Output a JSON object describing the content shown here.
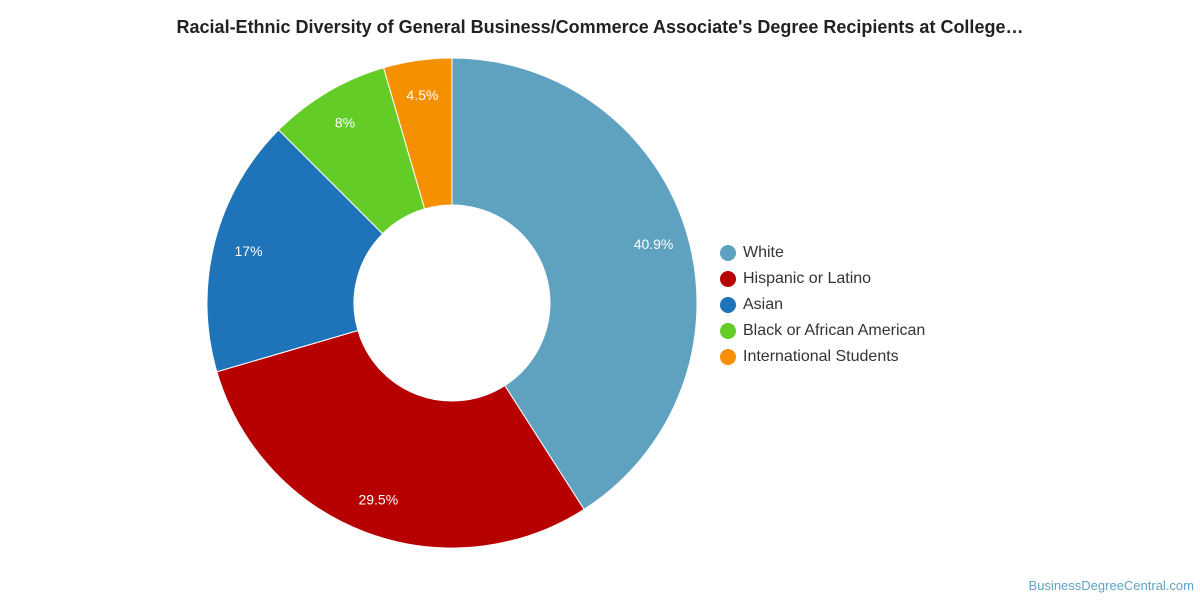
{
  "chart_data": {
    "type": "pie",
    "title": "Racial-Ethnic Diversity of General Business/Commerce Associate's Degree Recipients at College…",
    "series": [
      {
        "name": "White",
        "value": 40.9,
        "label": "40.9%",
        "color": "#5ea2c0"
      },
      {
        "name": "Hispanic or Latino",
        "value": 29.5,
        "label": "29.5%",
        "color": "#b70000"
      },
      {
        "name": "Asian",
        "value": 17,
        "label": "17%",
        "color": "#1f73b8"
      },
      {
        "name": "Black or African American",
        "value": 8,
        "label": "8%",
        "color": "#63cc26"
      },
      {
        "name": "International Students",
        "value": 4.5,
        "label": "4.5%",
        "color": "#f59100"
      }
    ],
    "legend_position": "right",
    "donut": true
  },
  "source": "BusinessDegreeCentral.com"
}
